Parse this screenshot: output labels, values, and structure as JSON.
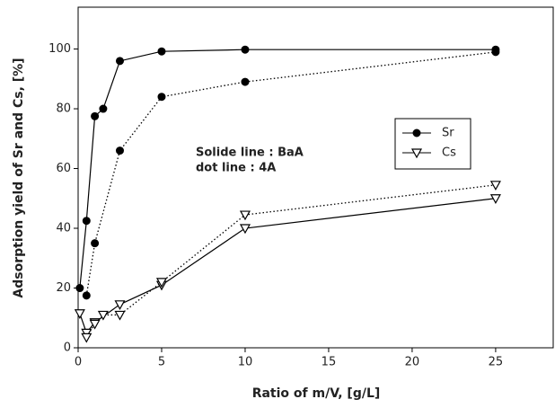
{
  "chart_data": {
    "type": "line",
    "x_label": "Ratio of m/V, [g/L]",
    "y_label": "Adsorption yield of Sr and Cs, [%]",
    "xlim": [
      0,
      28.5
    ],
    "xticks": [
      0,
      5,
      10,
      15,
      20,
      25
    ],
    "ylim": [
      0,
      114
    ],
    "yticks": [
      0,
      20,
      40,
      60,
      80,
      100
    ],
    "series": [
      {
        "marker": "circle",
        "dash": "solid",
        "color": "#000000",
        "x": [
          0.1,
          0.5,
          1,
          1.5,
          2.5,
          5,
          10,
          25
        ],
        "values": [
          20,
          42.5,
          77.5,
          80,
          96,
          99.2,
          99.8,
          99.8
        ]
      },
      {
        "marker": "circle",
        "dash": "dotted",
        "color": "#000000",
        "x": [
          0.5,
          1,
          2.5,
          5,
          10,
          25
        ],
        "values": [
          17.5,
          35,
          66,
          84,
          89,
          99
        ]
      },
      {
        "marker": "triangle",
        "dash": "solid",
        "color": "#000000",
        "x": [
          0.1,
          0.5,
          1,
          2.5,
          5,
          10,
          25
        ],
        "values": [
          11.5,
          5,
          8.5,
          14.5,
          21,
          40,
          50
        ]
      },
      {
        "marker": "triangle",
        "dash": "dotted",
        "color": "#000000",
        "x": [
          0.5,
          1,
          1.5,
          2.5,
          5,
          10,
          25
        ],
        "values": [
          3.5,
          8,
          11,
          11,
          22,
          44.5,
          54.5
        ]
      }
    ],
    "legend": {
      "entries": [
        {
          "name": "Sr",
          "marker": "circle"
        },
        {
          "name": "Cs",
          "marker": "triangle"
        }
      ]
    },
    "annotations": [
      "Solide line : BaA",
      "dot line : 4A"
    ]
  }
}
